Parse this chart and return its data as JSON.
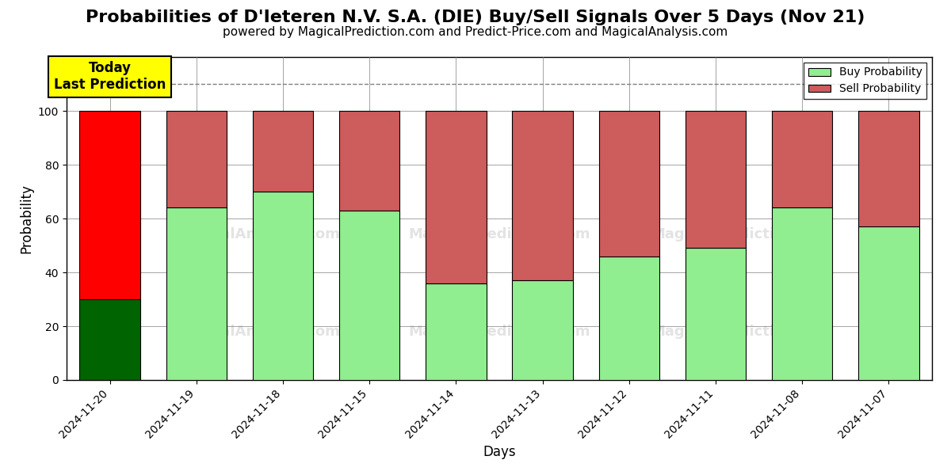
{
  "title": "Probabilities of D'Ieteren N.V. S.A. (DIE) Buy/Sell Signals Over 5 Days (Nov 21)",
  "subtitle": "powered by MagicalPrediction.com and Predict-Price.com and MagicalAnalysis.com",
  "xlabel": "Days",
  "ylabel": "Probability",
  "categories": [
    "2024-11-20",
    "2024-11-19",
    "2024-11-18",
    "2024-11-15",
    "2024-11-14",
    "2024-11-13",
    "2024-11-12",
    "2024-11-11",
    "2024-11-08",
    "2024-11-07"
  ],
  "buy_values": [
    30,
    64,
    70,
    63,
    36,
    37,
    46,
    49,
    64,
    57
  ],
  "sell_values": [
    70,
    36,
    30,
    37,
    64,
    63,
    54,
    51,
    36,
    43
  ],
  "buy_colors": [
    "#006400",
    "#90EE90",
    "#90EE90",
    "#90EE90",
    "#90EE90",
    "#90EE90",
    "#90EE90",
    "#90EE90",
    "#90EE90",
    "#90EE90"
  ],
  "sell_colors": [
    "#FF0000",
    "#CD5C5C",
    "#CD5C5C",
    "#CD5C5C",
    "#CD5C5C",
    "#CD5C5C",
    "#CD5C5C",
    "#CD5C5C",
    "#CD5C5C",
    "#CD5C5C"
  ],
  "legend_buy_color": "#90EE90",
  "legend_sell_color": "#CD5C5C",
  "today_box_color": "#FFFF00",
  "today_label": "Today\nLast Prediction",
  "dashed_line_y": 110,
  "ylim": [
    0,
    120
  ],
  "yticks": [
    0,
    20,
    40,
    60,
    80,
    100
  ],
  "background_color": "#FFFFFF",
  "bar_edge_color": "#000000",
  "bar_linewidth": 0.8,
  "title_fontsize": 16,
  "subtitle_fontsize": 11,
  "tick_fontsize": 10,
  "label_fontsize": 12,
  "legend_label_buy": "Buy Probability",
  "legend_label_sell": "Sell Probability"
}
